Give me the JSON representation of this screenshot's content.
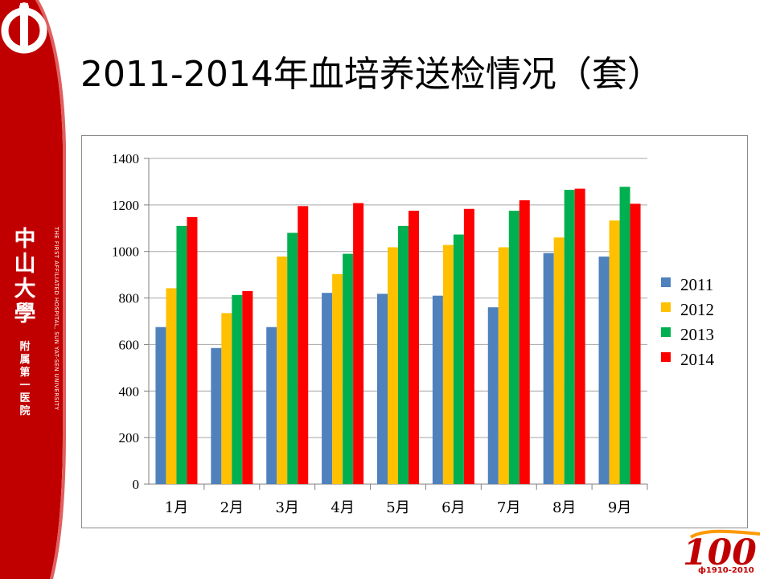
{
  "slide": {
    "title": "2011-2014年血培养送检情况（套）"
  },
  "branding": {
    "university_name": "中山大學",
    "hospital_sub": "附属第一医院",
    "english_name": "THE FIRST AFFILIATED HOSPITAL, SUN YAT-SEN UNIVERSITY",
    "centennial_years": "1910-2010",
    "centennial_number": "100",
    "brand_color": "#c00000"
  },
  "chart_data": {
    "type": "bar",
    "categories": [
      "1月",
      "2月",
      "3月",
      "4月",
      "5月",
      "6月",
      "7月",
      "8月",
      "9月"
    ],
    "series": [
      {
        "name": "2011",
        "color": "#4f81bd",
        "values": [
          675,
          585,
          675,
          822,
          818,
          810,
          760,
          993,
          978
        ]
      },
      {
        "name": "2012",
        "color": "#ffc000",
        "values": [
          842,
          735,
          978,
          903,
          1018,
          1028,
          1018,
          1060,
          1133
        ]
      },
      {
        "name": "2013",
        "color": "#00b050",
        "values": [
          1110,
          813,
          1080,
          990,
          1110,
          1073,
          1175,
          1265,
          1278
        ]
      },
      {
        "name": "2014",
        "color": "#ff0000",
        "values": [
          1148,
          830,
          1195,
          1208,
          1175,
          1183,
          1220,
          1270,
          1205
        ]
      }
    ],
    "title": "",
    "xlabel": "",
    "ylabel": "",
    "ylim": [
      0,
      1400
    ],
    "yticks": [
      "0",
      "200",
      "400",
      "600",
      "800",
      "1000",
      "1200",
      "1400"
    ],
    "grid": true,
    "legend": "right"
  }
}
